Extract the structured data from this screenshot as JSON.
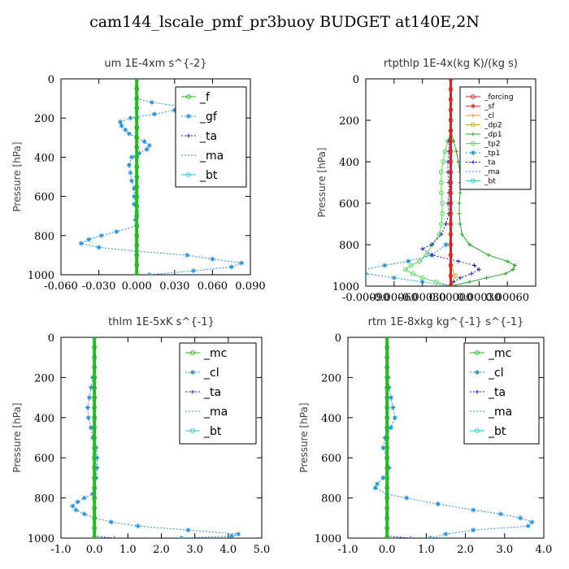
{
  "figure_title": "cam144_lscale_pmf_pr3buoy  BUDGET at140E,2N",
  "chart_data": [
    {
      "type": "line",
      "title": "um  1E-4xm s^{-2}",
      "ylabel": "Pressure [hPa]",
      "xlim": [
        -0.06,
        0.09
      ],
      "ylim": [
        1000,
        0
      ],
      "xticks": [
        "-0.060",
        "-0.030",
        "0.000",
        "0.030",
        "0.060",
        "0.090"
      ],
      "xtick_values": [
        -0.06,
        -0.03,
        0.0,
        0.03,
        0.06,
        0.09
      ],
      "yticks": [
        0,
        200,
        400,
        600,
        800,
        1000
      ],
      "legend": "top-right",
      "legend_entries": [
        "_f",
        "_gf",
        "_ta",
        "_ma",
        "_bt"
      ],
      "series": [
        {
          "name": "_f",
          "color": "#22bb22",
          "marker": "circle",
          "width": 4,
          "y": [
            0,
            50,
            100,
            150,
            200,
            250,
            300,
            350,
            400,
            450,
            500,
            550,
            600,
            650,
            700,
            750,
            800,
            850,
            900,
            950,
            1000
          ],
          "x": [
            0.0,
            0.0,
            0.0,
            0.0,
            0.0,
            0.0,
            0.0,
            0.0,
            0.0,
            0.0,
            0.0,
            0.0,
            0.0,
            0.0,
            0.0,
            0.0,
            0.0,
            0.0,
            0.0,
            0.0,
            0.0
          ]
        },
        {
          "name": "_gf",
          "color": "#1e90dd",
          "marker": "star",
          "width": 1,
          "dashed": true,
          "y": [
            100,
            120,
            140,
            160,
            180,
            200,
            220,
            240,
            260,
            280,
            300,
            320,
            340,
            360,
            380,
            400,
            440,
            480,
            520,
            560,
            600,
            640,
            680,
            720,
            750,
            780,
            800,
            820,
            840,
            860,
            880,
            900,
            920,
            940,
            960,
            980,
            1000
          ],
          "x": [
            0.0,
            0.012,
            0.034,
            0.03,
            0.014,
            -0.005,
            -0.013,
            -0.012,
            -0.009,
            -0.006,
            0.0,
            0.006,
            0.01,
            0.008,
            0.002,
            -0.004,
            -0.006,
            -0.005,
            -0.004,
            -0.002,
            -0.002,
            -0.002,
            0.0,
            -0.001,
            0.0,
            -0.016,
            -0.028,
            -0.038,
            -0.044,
            -0.03,
            0.0,
            0.04,
            0.06,
            0.083,
            0.075,
            0.045,
            0.01
          ]
        },
        {
          "name": "_ta",
          "color": "#2222cc",
          "marker": "plus",
          "width": 1,
          "dashed": true,
          "y": [
            0,
            1000
          ],
          "x": [
            0.0,
            0.0
          ]
        },
        {
          "name": "_ma",
          "color": "#1a9ad6",
          "marker": "none",
          "width": 1,
          "dashed": true,
          "y": [
            0,
            1000
          ],
          "x": [
            0.0,
            0.0
          ]
        },
        {
          "name": "_bt",
          "color": "#22cccc",
          "marker": "circle",
          "width": 1,
          "y": [
            0,
            1000
          ],
          "x": [
            0.0,
            0.0
          ]
        }
      ]
    },
    {
      "type": "line",
      "title": "rtpthlp  1E-4x(kg K)/(kg s)",
      "ylabel": "Pressure [hPa]",
      "xlim": [
        -0.0009,
        0.0009
      ],
      "ylim": [
        1000,
        0
      ],
      "xticks": [
        "-0.00090",
        "-0.00060",
        "-0.00030",
        "0.00000",
        "0.00030",
        "0.00060"
      ],
      "xtick_values": [
        -0.0009,
        -0.0006,
        -0.0003,
        0.0,
        0.0003,
        0.0006
      ],
      "yticks": [
        0,
        200,
        400,
        600,
        800,
        1000
      ],
      "legend": "top-right",
      "legend_entries": [
        "_forcing",
        "_sf",
        "_cl",
        "_dp2",
        "_dp1",
        "_tp2",
        "_tp1",
        "_ta",
        "_ma",
        "_bt"
      ],
      "series": [
        {
          "name": "_forcing",
          "color": "#dd2222",
          "marker": "circle",
          "width": 3,
          "y": [
            0,
            50,
            100,
            150,
            200,
            250,
            300,
            350,
            400,
            450,
            500,
            550,
            600,
            650,
            700,
            750,
            800,
            850,
            900,
            950,
            1000
          ],
          "x": [
            0.0,
            0.0,
            0.0,
            0.0,
            0.0,
            0.0,
            0.0,
            0.0,
            0.0,
            0.0,
            0.0,
            0.0,
            0.0,
            0.0,
            0.0,
            0.0,
            0.0,
            0.0,
            0.0,
            0.0,
            0.0
          ]
        },
        {
          "name": "_sf",
          "color": "#ee3333",
          "marker": "star",
          "width": 2,
          "y": [
            0,
            1000
          ],
          "x": [
            0.0,
            0.0
          ]
        },
        {
          "name": "_cl",
          "color": "#ff8800",
          "marker": "plus",
          "width": 1,
          "y": [
            0,
            1000
          ],
          "x": [
            0.0,
            0.0
          ]
        },
        {
          "name": "_dp2",
          "color": "#ccaa22",
          "marker": "circle",
          "width": 1,
          "y": [
            0,
            900,
            950,
            1000
          ],
          "x": [
            0.0,
            0.0,
            5e-05,
            0.0
          ]
        },
        {
          "name": "_dp1",
          "color": "#22aa22",
          "marker": "plus",
          "width": 1,
          "y": [
            250,
            300,
            350,
            400,
            450,
            500,
            550,
            600,
            650,
            700,
            750,
            800,
            850,
            880,
            900,
            920,
            940,
            960,
            980,
            1000
          ],
          "x": [
            0.0,
            3e-05,
            6e-05,
            8e-05,
            0.0001,
            0.0001,
            0.0001,
            9e-05,
            9e-05,
            0.0001,
            0.00012,
            0.0002,
            0.0004,
            0.0006,
            0.00068,
            0.00066,
            0.00058,
            0.00038,
            0.0002,
            0.0
          ]
        },
        {
          "name": "_tp2",
          "color": "#55dd55",
          "marker": "circle",
          "width": 1,
          "y": [
            250,
            300,
            350,
            400,
            450,
            500,
            550,
            600,
            650,
            700,
            750,
            800,
            850,
            880,
            900,
            920,
            940,
            960,
            980,
            1000
          ],
          "x": [
            0.0,
            -3e-05,
            -6e-05,
            -8e-05,
            -0.0001,
            -0.0001,
            -0.0001,
            -9e-05,
            -9e-05,
            -0.0001,
            -0.00012,
            -0.0002,
            -0.00026,
            -0.00033,
            -0.00042,
            -0.00048,
            -0.0004,
            -0.0003,
            -0.00015,
            0.0
          ]
        },
        {
          "name": "_tp1",
          "color": "#1e90dd",
          "marker": "star",
          "width": 1,
          "dashed": true,
          "y": [
            800,
            850,
            880,
            900,
            920,
            940,
            960,
            980,
            1000
          ],
          "x": [
            -5e-05,
            -0.0002,
            -0.00045,
            -0.0007,
            -0.00092,
            -0.0009,
            -0.0006,
            -0.0003,
            0.0
          ]
        },
        {
          "name": "_ta",
          "color": "#2222cc",
          "marker": "plus",
          "width": 1,
          "dashed": true,
          "y": [
            250,
            300,
            350,
            400,
            450,
            500,
            550,
            600,
            650,
            700,
            750,
            800,
            820,
            850,
            880,
            900,
            920,
            940,
            960,
            980,
            1000
          ],
          "x": [
            0.0,
            -2e-05,
            -2e-05,
            -3e-05,
            -3e-05,
            -2e-05,
            -2e-05,
            -3e-05,
            -2e-05,
            -5e-05,
            -0.0001,
            -0.0002,
            -0.0003,
            -0.0002,
            8e-05,
            0.00025,
            0.0003,
            0.00022,
            0.0001,
            3e-05,
            0.0
          ]
        },
        {
          "name": "_ma",
          "color": "#1a9ad6",
          "marker": "none",
          "width": 1,
          "dashed": true,
          "y": [
            0,
            1000
          ],
          "x": [
            0.0,
            0.0
          ]
        },
        {
          "name": "_bt",
          "color": "#22cccc",
          "marker": "circle",
          "width": 1,
          "y": [
            0,
            1000
          ],
          "x": [
            0.0,
            0.0
          ]
        }
      ]
    },
    {
      "type": "line",
      "title": "thlm  1E-5xK s^{-1}",
      "ylabel": "Pressure [hPa]",
      "xlim": [
        -1.0,
        5.0
      ],
      "ylim": [
        1000,
        0
      ],
      "xticks": [
        "-1.0",
        "0.0",
        "1.0",
        "2.0",
        "3.0",
        "4.0",
        "5.0"
      ],
      "xtick_values": [
        -1.0,
        0.0,
        1.0,
        2.0,
        3.0,
        4.0,
        5.0
      ],
      "yticks": [
        0,
        200,
        400,
        600,
        800,
        1000
      ],
      "legend": "top-right",
      "legend_entries": [
        "_mc",
        "_cl",
        "_ta",
        "_ma",
        "_bt"
      ],
      "series": [
        {
          "name": "_mc",
          "color": "#22bb22",
          "marker": "circle",
          "width": 4,
          "y": [
            0,
            50,
            100,
            150,
            200,
            250,
            300,
            350,
            400,
            450,
            500,
            550,
            600,
            650,
            700,
            750,
            800,
            850,
            900,
            950,
            1000
          ],
          "x": [
            0.0,
            0.0,
            0.0,
            0.0,
            0.0,
            0.0,
            0.0,
            0.0,
            0.0,
            0.0,
            0.0,
            0.0,
            0.0,
            0.0,
            0.0,
            0.0,
            0.0,
            0.0,
            0.0,
            0.0,
            0.0
          ]
        },
        {
          "name": "_cl",
          "color": "#1e90dd",
          "marker": "star",
          "width": 1,
          "dashed": true,
          "y": [
            150,
            200,
            250,
            300,
            350,
            400,
            450,
            500,
            550,
            600,
            650,
            700,
            750,
            780,
            800,
            820,
            840,
            860,
            880,
            900,
            920,
            940,
            960,
            980,
            990,
            1000
          ],
          "x": [
            0.0,
            -0.05,
            -0.1,
            -0.15,
            -0.2,
            -0.18,
            -0.1,
            -0.05,
            0.05,
            0.08,
            0.08,
            0.05,
            0.0,
            -0.05,
            -0.3,
            -0.5,
            -0.65,
            -0.55,
            -0.3,
            0.0,
            0.5,
            1.3,
            2.8,
            4.3,
            4.1,
            2.6
          ]
        },
        {
          "name": "_ta",
          "color": "#2222cc",
          "marker": "plus",
          "width": 1,
          "dashed": true,
          "y": [
            0,
            990,
            1000
          ],
          "x": [
            0.0,
            0.0,
            0.6
          ]
        },
        {
          "name": "_ma",
          "color": "#1a9ad6",
          "marker": "none",
          "width": 1,
          "dashed": true,
          "y": [
            0,
            1000
          ],
          "x": [
            0.0,
            0.0
          ]
        },
        {
          "name": "_bt",
          "color": "#22cccc",
          "marker": "circle",
          "width": 1,
          "y": [
            0,
            1000
          ],
          "x": [
            0.0,
            0.0
          ]
        }
      ]
    },
    {
      "type": "line",
      "title": "rtm  1E-8xkg kg^{-1} s^{-1}",
      "ylabel": "Pressure [hPa]",
      "xlim": [
        -1.0,
        4.0
      ],
      "ylim": [
        1000,
        0
      ],
      "xticks": [
        "-1.0",
        "0.0",
        "1.0",
        "2.0",
        "3.0",
        "4.0"
      ],
      "xtick_values": [
        -1.0,
        0.0,
        1.0,
        2.0,
        3.0,
        4.0
      ],
      "yticks": [
        0,
        200,
        400,
        600,
        800,
        1000
      ],
      "legend": "top-right",
      "legend_entries": [
        "_mc",
        "_cl",
        "_ta",
        "_ma",
        "_bt"
      ],
      "series": [
        {
          "name": "_mc",
          "color": "#22bb22",
          "marker": "circle",
          "width": 4,
          "y": [
            0,
            50,
            100,
            150,
            200,
            250,
            300,
            350,
            400,
            450,
            500,
            550,
            600,
            650,
            700,
            750,
            800,
            850,
            900,
            950,
            1000
          ],
          "x": [
            0.0,
            0.0,
            0.0,
            0.0,
            0.0,
            0.0,
            0.0,
            0.0,
            0.0,
            0.0,
            0.0,
            0.0,
            0.0,
            0.0,
            0.0,
            0.0,
            0.0,
            0.0,
            0.0,
            0.0,
            0.0
          ]
        },
        {
          "name": "_cl",
          "color": "#1e90dd",
          "marker": "star",
          "width": 1,
          "dashed": true,
          "y": [
            150,
            200,
            250,
            300,
            350,
            400,
            450,
            500,
            550,
            600,
            650,
            700,
            730,
            750,
            780,
            800,
            830,
            860,
            880,
            900,
            920,
            940,
            960,
            980,
            1000
          ],
          "x": [
            0.0,
            0.03,
            0.05,
            0.1,
            0.15,
            0.2,
            0.1,
            -0.05,
            -0.1,
            0.0,
            0.05,
            -0.1,
            -0.25,
            -0.3,
            0.0,
            0.5,
            1.3,
            2.2,
            2.9,
            3.4,
            3.7,
            3.6,
            2.2,
            1.5,
            1.1
          ]
        },
        {
          "name": "_ta",
          "color": "#2222cc",
          "marker": "plus",
          "width": 1,
          "dashed": true,
          "y": [
            0,
            990,
            1000
          ],
          "x": [
            0.0,
            0.0,
            0.6
          ]
        },
        {
          "name": "_ma",
          "color": "#1a9ad6",
          "marker": "none",
          "width": 1,
          "dashed": true,
          "y": [
            0,
            1000
          ],
          "x": [
            0.0,
            0.0
          ]
        },
        {
          "name": "_bt",
          "color": "#22cccc",
          "marker": "circle",
          "width": 1,
          "y": [
            0,
            1000
          ],
          "x": [
            0.0,
            0.0
          ]
        }
      ]
    }
  ]
}
